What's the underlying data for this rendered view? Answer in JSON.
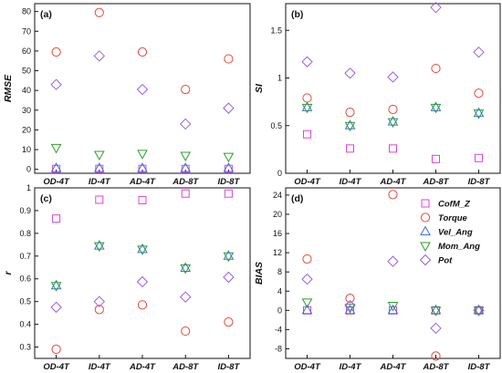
{
  "chart_data": [
    {
      "panel": "(a)",
      "type": "scatter",
      "ylabel": "RMSE",
      "categories": [
        "OD-4T",
        "ID-4T",
        "AD-4T",
        "AD-8T",
        "ID-8T"
      ],
      "ylim": [
        -2,
        84
      ],
      "yticks": [
        0,
        10,
        20,
        30,
        40,
        50,
        60,
        70,
        80
      ],
      "series": [
        {
          "name": "CofM_Z",
          "values": [
            0.2,
            0.2,
            0.2,
            0.2,
            0.2
          ]
        },
        {
          "name": "Torque",
          "values": [
            59.5,
            79.5,
            59.5,
            40.5,
            56
          ]
        },
        {
          "name": "Vel_Ang",
          "values": [
            0.5,
            0.5,
            0.5,
            0.5,
            0.5
          ]
        },
        {
          "name": "Mom_Ang",
          "values": [
            11,
            7.5,
            8,
            7,
            6.5
          ]
        },
        {
          "name": "Pot",
          "values": [
            43,
            57.5,
            40.5,
            23,
            31
          ]
        }
      ]
    },
    {
      "panel": "(b)",
      "type": "scatter",
      "ylabel": "SI",
      "categories": [
        "OD-4T",
        "ID-4T",
        "AD-4T",
        "AD-8T",
        "ID-8T"
      ],
      "ylim": [
        0,
        1.78
      ],
      "yticks": [
        0.0,
        0.5,
        1.0,
        1.5
      ],
      "series": [
        {
          "name": "CofM_Z",
          "values": [
            0.41,
            0.26,
            0.26,
            0.15,
            0.16
          ]
        },
        {
          "name": "Torque",
          "values": [
            0.79,
            0.64,
            0.67,
            1.1,
            0.84
          ]
        },
        {
          "name": "Vel_Ang",
          "values": [
            0.69,
            0.5,
            0.54,
            0.69,
            0.63
          ]
        },
        {
          "name": "Mom_Ang",
          "values": [
            0.69,
            0.5,
            0.54,
            0.69,
            0.63
          ]
        },
        {
          "name": "Pot",
          "values": [
            1.17,
            1.05,
            1.01,
            1.74,
            1.27
          ]
        }
      ]
    },
    {
      "panel": "(c)",
      "type": "scatter",
      "ylabel": "r",
      "categories": [
        "OD-4T",
        "ID-4T",
        "AD-4T",
        "AD-8T",
        "ID-8T"
      ],
      "ylim": [
        0.25,
        1.0
      ],
      "yticks": [
        0.3,
        0.4,
        0.5,
        0.6,
        0.7,
        0.8,
        0.9,
        1.0
      ],
      "series": [
        {
          "name": "CofM_Z",
          "values": [
            0.865,
            0.948,
            0.946,
            0.975,
            0.975
          ]
        },
        {
          "name": "Torque",
          "values": [
            0.29,
            0.465,
            0.485,
            0.37,
            0.41
          ]
        },
        {
          "name": "Vel_Ang",
          "values": [
            0.57,
            0.745,
            0.73,
            0.647,
            0.7
          ]
        },
        {
          "name": "Mom_Ang",
          "values": [
            0.57,
            0.745,
            0.73,
            0.647,
            0.7
          ]
        },
        {
          "name": "Pot",
          "values": [
            0.475,
            0.5,
            0.587,
            0.52,
            0.607
          ]
        }
      ]
    },
    {
      "panel": "(d)",
      "type": "scatter",
      "ylabel": "BIAS",
      "categories": [
        "OD-4T",
        "ID-4T",
        "AD-4T",
        "AD-8T",
        "ID-8T"
      ],
      "ylim": [
        -10,
        25.5
      ],
      "yticks": [
        -8,
        -4,
        0,
        4,
        8,
        12,
        16,
        20,
        24
      ],
      "legend": "top-right",
      "series": [
        {
          "name": "CofM_Z",
          "values": [
            0,
            0,
            0,
            0,
            0
          ]
        },
        {
          "name": "Torque",
          "values": [
            10.7,
            2.5,
            24.1,
            -9.5,
            0
          ]
        },
        {
          "name": "Vel_Ang",
          "values": [
            0,
            0,
            0,
            0,
            0
          ]
        },
        {
          "name": "Mom_Ang",
          "values": [
            1.7,
            0.6,
            1.0,
            0,
            0
          ]
        },
        {
          "name": "Pot",
          "values": [
            6.5,
            1.0,
            10.2,
            -3.7,
            0
          ]
        }
      ]
    }
  ],
  "legend": [
    "CofM_Z",
    "Torque",
    "Vel_Ang",
    "Mom_Ang",
    "Pot"
  ],
  "styles": {
    "CofM_Z": {
      "marker": "square",
      "color": "#e040e0"
    },
    "Torque": {
      "marker": "circle",
      "color": "#e8483a"
    },
    "Vel_Ang": {
      "marker": "triangle-up",
      "color": "#3a6fe0"
    },
    "Mom_Ang": {
      "marker": "triangle-down",
      "color": "#2aa02a"
    },
    "Pot": {
      "marker": "diamond",
      "color": "#9b5de5"
    }
  }
}
